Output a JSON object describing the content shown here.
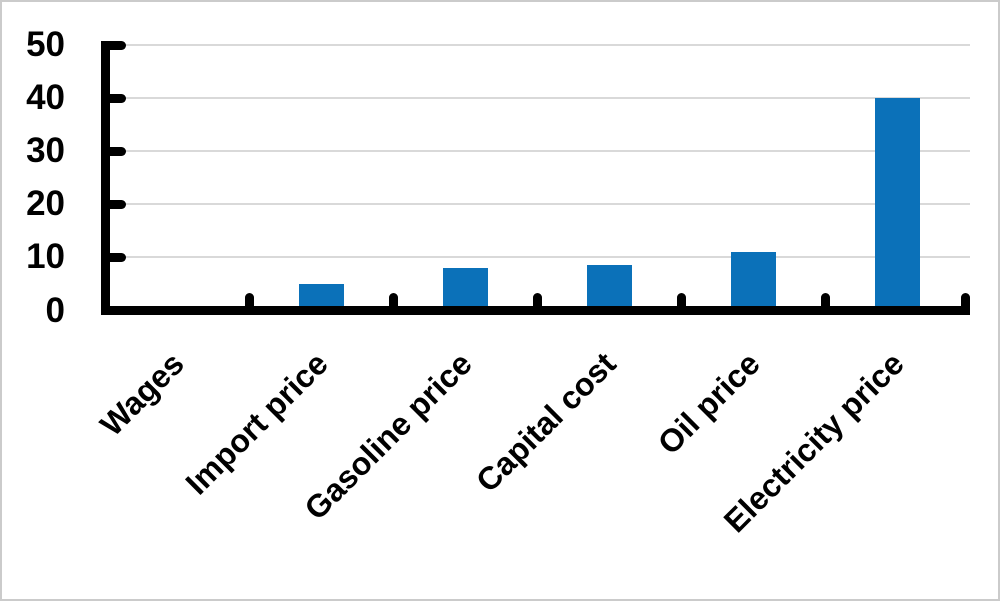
{
  "chart_data": {
    "type": "bar",
    "title": "",
    "xlabel": "",
    "ylabel": "",
    "categories": [
      "Wages",
      "Import price",
      "Gasoline price",
      "Capital cost",
      "Oil price",
      "Electricity price"
    ],
    "values": [
      0,
      5,
      8,
      8.5,
      11,
      40
    ],
    "ylim": [
      0,
      50
    ],
    "yticks": [
      0,
      10,
      20,
      30,
      40,
      50
    ],
    "grid": true,
    "legend": false,
    "bar_color": "#0B71B9",
    "gridline_color": "#D9D9D9",
    "axis_color": "#000000",
    "label_color": "#000000",
    "background": "#FFFFFF",
    "frame_border_color": "#CBCBCB"
  }
}
